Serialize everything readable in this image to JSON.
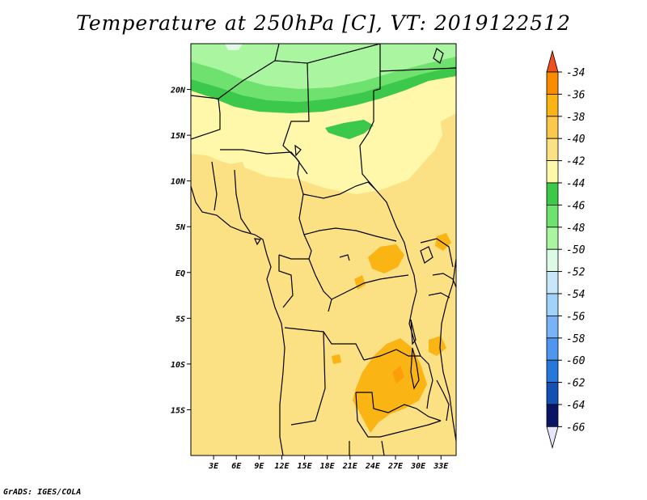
{
  "title": "Temperature at 250hPa [C], VT: 2019122512",
  "credit": "GrADS: IGES/COLA",
  "map": {
    "lon_range": [
      0,
      35
    ],
    "lat_range": [
      -20,
      25
    ],
    "lon_ticks": [
      {
        "value": 3,
        "label": "3E"
      },
      {
        "value": 6,
        "label": "6E"
      },
      {
        "value": 9,
        "label": "9E"
      },
      {
        "value": 12,
        "label": "12E"
      },
      {
        "value": 15,
        "label": "15E"
      },
      {
        "value": 18,
        "label": "18E"
      },
      {
        "value": 21,
        "label": "21E"
      },
      {
        "value": 24,
        "label": "24E"
      },
      {
        "value": 27,
        "label": "27E"
      },
      {
        "value": 30,
        "label": "30E"
      },
      {
        "value": 33,
        "label": "33E"
      }
    ],
    "lat_ticks": [
      {
        "value": 20,
        "label": "20N"
      },
      {
        "value": 15,
        "label": "15N"
      },
      {
        "value": 10,
        "label": "10N"
      },
      {
        "value": 5,
        "label": "5N"
      },
      {
        "value": 0,
        "label": "EQ"
      },
      {
        "value": -5,
        "label": "5S"
      },
      {
        "value": -10,
        "label": "10S"
      },
      {
        "value": -15,
        "label": "15S"
      }
    ]
  },
  "colorbar": {
    "labels": [
      "-34",
      "-36",
      "-38",
      "-40",
      "-42",
      "-44",
      "-46",
      "-48",
      "-50",
      "-52",
      "-54",
      "-56",
      "-58",
      "-60",
      "-62",
      "-64",
      "-66"
    ],
    "colors": [
      "#f0501e",
      "#fa8c00",
      "#fab414",
      "#fac84b",
      "#fbe183",
      "#fff8aa",
      "#3cc84b",
      "#6ee16e",
      "#aaf5a0",
      "#dcfae6",
      "#c8e6fa",
      "#a0d2fa",
      "#78b4f5",
      "#5096f0",
      "#2878dc",
      "#1450b4",
      "#0a1464",
      "#e6e6fa"
    ]
  }
}
